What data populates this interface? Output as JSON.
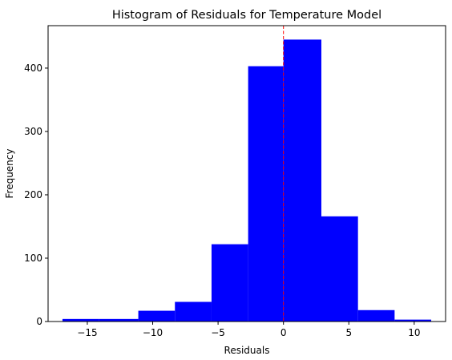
{
  "chart_data": {
    "type": "histogram",
    "title": "Histogram of Residuals for Temperature Model",
    "xlabel": "Residuals",
    "ylabel": "Frequency",
    "bar_color": "#0000ff",
    "reference_line": {
      "x": 0,
      "color": "#ff0000",
      "style": "dashed"
    },
    "bin_edges": [
      -16.9,
      -14.1,
      -11.1,
      -8.3,
      -5.5,
      -2.7,
      0.0,
      2.9,
      5.7,
      8.5,
      11.3
    ],
    "values": [
      4,
      4,
      17,
      31,
      122,
      403,
      445,
      166,
      18,
      3
    ],
    "xlim": [
      -18.0,
      12.4
    ],
    "ylim": [
      0,
      467
    ],
    "xticks": [
      -15,
      -10,
      -5,
      0,
      5,
      10
    ],
    "xtick_labels": [
      "−15",
      "−10",
      "−5",
      "0",
      "5",
      "10"
    ],
    "yticks": [
      0,
      100,
      200,
      300,
      400
    ],
    "ytick_labels": [
      "0",
      "100",
      "200",
      "300",
      "400"
    ],
    "grid": false,
    "legend": "none"
  }
}
